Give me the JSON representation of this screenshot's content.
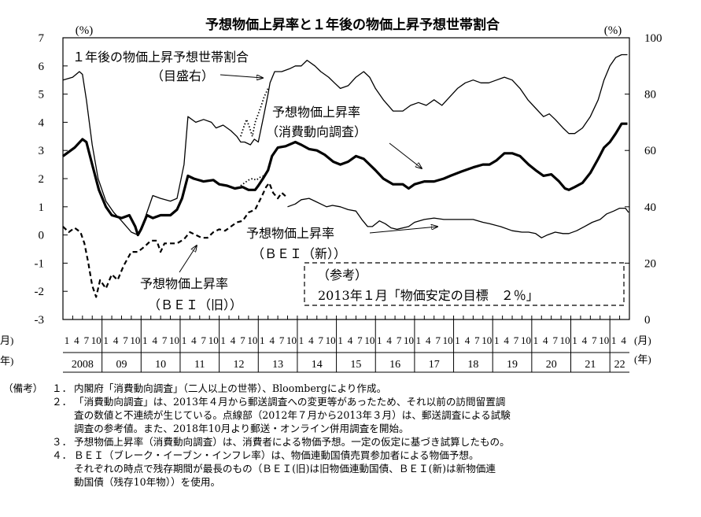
{
  "chart_data": {
    "type": "line",
    "title": "予想物価上昇率と１年後の物価上昇予想世帯割合",
    "left_axis": {
      "unit": "(%)",
      "range": [
        -3,
        7
      ],
      "ticks": [
        7,
        6,
        5,
        4,
        3,
        2,
        1,
        0,
        -1,
        -2,
        -3
      ]
    },
    "right_axis": {
      "unit": "(%)",
      "range": [
        0,
        100
      ],
      "ticks": [
        100,
        80,
        60,
        40,
        20,
        0
      ]
    },
    "x_axis": {
      "month_unit": "(月)",
      "year_unit": "(年)",
      "left_edge_month_unit": "月)",
      "left_edge_year_unit": "年)",
      "month_ticks": [
        "1",
        "4",
        "7",
        "10"
      ],
      "years": [
        "2008",
        "09",
        "10",
        "11",
        "12",
        "13",
        "14",
        "15",
        "16",
        "17",
        "18",
        "19",
        "20",
        "21",
        "22"
      ]
    },
    "series": [
      {
        "name": "１年後の物価上昇予想世帯割合",
        "axis": "right",
        "style": "thin",
        "points": [
          [
            2008.0,
            85
          ],
          [
            2008.25,
            86
          ],
          [
            2008.42,
            88
          ],
          [
            2008.5,
            87
          ],
          [
            2008.6,
            78
          ],
          [
            2008.75,
            62
          ],
          [
            2008.9,
            50
          ],
          [
            2009.1,
            42
          ],
          [
            2009.3,
            38
          ],
          [
            2009.5,
            35
          ],
          [
            2009.75,
            31
          ],
          [
            2009.92,
            30
          ],
          [
            2010.1,
            36
          ],
          [
            2010.3,
            44
          ],
          [
            2010.5,
            43
          ],
          [
            2010.75,
            42
          ],
          [
            2010.92,
            43
          ],
          [
            2011.1,
            55
          ],
          [
            2011.2,
            72
          ],
          [
            2011.4,
            70
          ],
          [
            2011.6,
            71
          ],
          [
            2011.8,
            70
          ],
          [
            2011.92,
            68
          ],
          [
            2012.1,
            69
          ],
          [
            2012.3,
            67
          ],
          [
            2012.45,
            65
          ],
          [
            2012.55,
            63
          ],
          [
            2012.65,
            63
          ],
          [
            2012.8,
            62
          ],
          [
            2012.9,
            64
          ],
          [
            2013.0,
            63
          ],
          [
            2013.15,
            73
          ],
          [
            2013.25,
            80
          ],
          [
            2013.3,
            84
          ],
          [
            2013.42,
            88
          ],
          [
            2013.6,
            88
          ],
          [
            2013.8,
            89
          ],
          [
            2013.95,
            90
          ],
          [
            2014.1,
            90
          ],
          [
            2014.25,
            92
          ],
          [
            2014.45,
            90
          ],
          [
            2014.6,
            88
          ],
          [
            2014.8,
            86
          ],
          [
            2014.95,
            84
          ],
          [
            2015.1,
            82
          ],
          [
            2015.3,
            83
          ],
          [
            2015.5,
            86
          ],
          [
            2015.7,
            88
          ],
          [
            2015.85,
            86
          ],
          [
            2016.0,
            82
          ],
          [
            2016.2,
            78
          ],
          [
            2016.45,
            74
          ],
          [
            2016.7,
            74
          ],
          [
            2016.9,
            76
          ],
          [
            2017.1,
            77
          ],
          [
            2017.3,
            76
          ],
          [
            2017.5,
            78
          ],
          [
            2017.7,
            76
          ],
          [
            2017.9,
            79
          ],
          [
            2018.1,
            82
          ],
          [
            2018.3,
            84
          ],
          [
            2018.5,
            85
          ],
          [
            2018.7,
            84
          ],
          [
            2018.9,
            84
          ],
          [
            2019.1,
            85
          ],
          [
            2019.3,
            86
          ],
          [
            2019.5,
            85
          ],
          [
            2019.7,
            82
          ],
          [
            2019.9,
            78
          ],
          [
            2020.1,
            75
          ],
          [
            2020.3,
            72
          ],
          [
            2020.45,
            73
          ],
          [
            2020.6,
            71
          ],
          [
            2020.8,
            68
          ],
          [
            2020.95,
            66
          ],
          [
            2021.1,
            66
          ],
          [
            2021.3,
            68
          ],
          [
            2021.5,
            72
          ],
          [
            2021.7,
            78
          ],
          [
            2021.85,
            85
          ],
          [
            2022.0,
            90
          ],
          [
            2022.15,
            93
          ],
          [
            2022.3,
            94
          ],
          [
            2022.45,
            94
          ]
        ]
      },
      {
        "name": "予想物価上昇率（消費動向調査）",
        "axis": "left",
        "style": "thick",
        "points": [
          [
            2008.0,
            2.8
          ],
          [
            2008.3,
            3.1
          ],
          [
            2008.5,
            3.4
          ],
          [
            2008.6,
            3.3
          ],
          [
            2008.75,
            2.5
          ],
          [
            2008.92,
            1.6
          ],
          [
            2009.1,
            1.0
          ],
          [
            2009.25,
            0.7
          ],
          [
            2009.5,
            0.6
          ],
          [
            2009.7,
            0.7
          ],
          [
            2009.85,
            0.3
          ],
          [
            2009.92,
            0.0
          ],
          [
            2010.0,
            0.2
          ],
          [
            2010.15,
            0.7
          ],
          [
            2010.3,
            0.6
          ],
          [
            2010.5,
            0.7
          ],
          [
            2010.75,
            0.7
          ],
          [
            2010.92,
            0.9
          ],
          [
            2011.05,
            1.3
          ],
          [
            2011.2,
            2.1
          ],
          [
            2011.35,
            2.0
          ],
          [
            2011.6,
            1.9
          ],
          [
            2011.85,
            1.95
          ],
          [
            2012.0,
            1.8
          ],
          [
            2012.2,
            1.75
          ],
          [
            2012.4,
            1.65
          ],
          [
            2012.6,
            1.7
          ],
          [
            2012.75,
            1.6
          ],
          [
            2012.92,
            1.6
          ],
          [
            2013.0,
            1.75
          ],
          [
            2013.12,
            2.0
          ],
          [
            2013.25,
            2.3
          ],
          [
            2013.35,
            2.8
          ],
          [
            2013.5,
            3.1
          ],
          [
            2013.7,
            3.15
          ],
          [
            2013.95,
            3.3
          ],
          [
            2014.1,
            3.2
          ],
          [
            2014.3,
            3.05
          ],
          [
            2014.5,
            3.0
          ],
          [
            2014.7,
            2.85
          ],
          [
            2014.92,
            2.6
          ],
          [
            2015.1,
            2.5
          ],
          [
            2015.3,
            2.6
          ],
          [
            2015.5,
            2.8
          ],
          [
            2015.7,
            2.7
          ],
          [
            2015.85,
            2.5
          ],
          [
            2016.0,
            2.3
          ],
          [
            2016.2,
            2.0
          ],
          [
            2016.45,
            1.8
          ],
          [
            2016.7,
            1.8
          ],
          [
            2016.85,
            1.65
          ],
          [
            2017.0,
            1.8
          ],
          [
            2017.25,
            1.9
          ],
          [
            2017.5,
            1.9
          ],
          [
            2017.75,
            2.0
          ],
          [
            2017.92,
            2.1
          ],
          [
            2018.2,
            2.25
          ],
          [
            2018.5,
            2.4
          ],
          [
            2018.75,
            2.5
          ],
          [
            2018.92,
            2.5
          ],
          [
            2019.1,
            2.65
          ],
          [
            2019.3,
            2.9
          ],
          [
            2019.5,
            2.9
          ],
          [
            2019.7,
            2.8
          ],
          [
            2019.92,
            2.5
          ],
          [
            2020.1,
            2.3
          ],
          [
            2020.3,
            2.1
          ],
          [
            2020.5,
            2.15
          ],
          [
            2020.7,
            1.9
          ],
          [
            2020.85,
            1.65
          ],
          [
            2020.95,
            1.6
          ],
          [
            2021.1,
            1.7
          ],
          [
            2021.3,
            1.85
          ],
          [
            2021.5,
            2.2
          ],
          [
            2021.7,
            2.7
          ],
          [
            2021.85,
            3.1
          ],
          [
            2022.0,
            3.3
          ],
          [
            2022.15,
            3.6
          ],
          [
            2022.3,
            3.95
          ],
          [
            2022.45,
            3.95
          ]
        ]
      },
      {
        "name": "予想物価上昇率（ＢＥＩ（旧））",
        "axis": "left",
        "style": "dashed",
        "points": [
          [
            2008.0,
            0.3
          ],
          [
            2008.15,
            0.1
          ],
          [
            2008.3,
            0.25
          ],
          [
            2008.45,
            0.1
          ],
          [
            2008.55,
            -0.3
          ],
          [
            2008.65,
            -1.0
          ],
          [
            2008.75,
            -1.8
          ],
          [
            2008.85,
            -2.2
          ],
          [
            2008.95,
            -1.6
          ],
          [
            2009.1,
            -1.9
          ],
          [
            2009.25,
            -1.4
          ],
          [
            2009.4,
            -1.6
          ],
          [
            2009.55,
            -1.1
          ],
          [
            2009.75,
            -0.6
          ],
          [
            2009.92,
            -0.6
          ],
          [
            2010.1,
            -0.4
          ],
          [
            2010.25,
            -0.2
          ],
          [
            2010.4,
            -0.2
          ],
          [
            2010.5,
            -0.6
          ],
          [
            2010.6,
            -0.3
          ],
          [
            2010.75,
            -0.3
          ],
          [
            2010.92,
            -0.3
          ],
          [
            2011.1,
            -0.15
          ],
          [
            2011.25,
            0.1
          ],
          [
            2011.4,
            0.0
          ],
          [
            2011.55,
            -0.1
          ],
          [
            2011.7,
            -0.1
          ],
          [
            2011.85,
            0.1
          ],
          [
            2012.0,
            0.2
          ],
          [
            2012.15,
            0.15
          ],
          [
            2012.3,
            0.3
          ],
          [
            2012.45,
            0.45
          ],
          [
            2012.6,
            0.5
          ],
          [
            2012.75,
            0.8
          ],
          [
            2012.92,
            0.9
          ],
          [
            2013.1,
            1.4
          ],
          [
            2013.2,
            1.7
          ],
          [
            2013.28,
            1.85
          ],
          [
            2013.38,
            1.5
          ],
          [
            2013.5,
            1.3
          ],
          [
            2013.6,
            1.5
          ],
          [
            2013.72,
            1.35
          ]
        ]
      },
      {
        "name": "予想物価上昇率（ＢＥＩ（新））",
        "axis": "left",
        "style": "thin",
        "points": [
          [
            2013.75,
            1.0
          ],
          [
            2013.95,
            1.1
          ],
          [
            2014.1,
            1.25
          ],
          [
            2014.3,
            1.3
          ],
          [
            2014.45,
            1.2
          ],
          [
            2014.6,
            1.1
          ],
          [
            2014.75,
            1.0
          ],
          [
            2014.9,
            1.05
          ],
          [
            2015.1,
            1.0
          ],
          [
            2015.3,
            0.9
          ],
          [
            2015.5,
            0.85
          ],
          [
            2015.65,
            0.55
          ],
          [
            2015.8,
            0.3
          ],
          [
            2015.92,
            0.3
          ],
          [
            2016.1,
            0.5
          ],
          [
            2016.25,
            0.4
          ],
          [
            2016.4,
            0.25
          ],
          [
            2016.55,
            0.2
          ],
          [
            2016.7,
            0.25
          ],
          [
            2016.85,
            0.3
          ],
          [
            2017.0,
            0.45
          ],
          [
            2017.25,
            0.55
          ],
          [
            2017.5,
            0.6
          ],
          [
            2017.75,
            0.55
          ],
          [
            2017.92,
            0.55
          ],
          [
            2018.2,
            0.55
          ],
          [
            2018.5,
            0.55
          ],
          [
            2018.75,
            0.45
          ],
          [
            2018.92,
            0.4
          ],
          [
            2019.2,
            0.3
          ],
          [
            2019.5,
            0.15
          ],
          [
            2019.75,
            0.1
          ],
          [
            2019.92,
            0.1
          ],
          [
            2020.1,
            0.05
          ],
          [
            2020.25,
            -0.1
          ],
          [
            2020.4,
            0.0
          ],
          [
            2020.6,
            0.1
          ],
          [
            2020.8,
            0.05
          ],
          [
            2020.95,
            0.05
          ],
          [
            2021.15,
            0.15
          ],
          [
            2021.35,
            0.3
          ],
          [
            2021.55,
            0.45
          ],
          [
            2021.75,
            0.55
          ],
          [
            2021.92,
            0.75
          ],
          [
            2022.1,
            0.85
          ],
          [
            2022.25,
            0.95
          ],
          [
            2022.4,
            0.95
          ],
          [
            2022.48,
            0.8
          ]
        ]
      },
      {
        "name": "１年後の物価上昇予想世帯割合（試験調査・点線部）",
        "axis": "right",
        "style": "dotted",
        "points": [
          [
            2012.55,
            65
          ],
          [
            2012.62,
            68
          ],
          [
            2012.7,
            71
          ],
          [
            2012.78,
            68
          ],
          [
            2012.85,
            65
          ],
          [
            2012.92,
            70
          ],
          [
            2013.0,
            73
          ],
          [
            2013.08,
            76
          ],
          [
            2013.15,
            79
          ],
          [
            2013.25,
            82
          ]
        ]
      },
      {
        "name": "予想物価上昇率（消費動向調査・点線部）",
        "axis": "left",
        "style": "dotted",
        "points": [
          [
            2012.55,
            1.75
          ],
          [
            2012.65,
            1.85
          ],
          [
            2012.75,
            1.95
          ],
          [
            2012.85,
            2.0
          ],
          [
            2012.95,
            1.95
          ],
          [
            2013.05,
            2.05
          ],
          [
            2013.15,
            2.1
          ],
          [
            2013.25,
            2.3
          ]
        ]
      }
    ],
    "annotations": {
      "household_label_1": "１年後の物価上昇予想世帯割合",
      "household_label_2": "（目盛右）",
      "survey_label_1": "予想物価上昇率",
      "survey_label_2": "（消費動向調査）",
      "bei_new_label_1": "予想物価上昇率",
      "bei_new_label_2": "（ＢＥＩ（新））",
      "bei_old_label_1": "予想物価上昇率",
      "bei_old_label_2": "（ＢＥＩ（旧））",
      "reference_label_1": "（参考）",
      "reference_label_2": "2013年１月「物価安定の目標　２％」"
    },
    "grid": false,
    "legend": "none"
  },
  "notes": {
    "heading": "（備考）",
    "items": [
      {
        "num": "１．",
        "lines": [
          "内閣府「消費動向調査」（二人以上の世帯）、Bloombergにより作成。"
        ]
      },
      {
        "num": "２．",
        "lines": [
          "「消費動向調査」は、2013年４月から郵送調査への変更等があったため、それ以前の訪問留置調",
          "査の数値と不連続が生じている。点線部（2012年７月から2013年３月）は、郵送調査による試験",
          "調査の参考値。また、2018年10月より郵送・オンライン併用調査を開始。"
        ]
      },
      {
        "num": "３．",
        "lines": [
          "予想物価上昇率（消費動向調査）は、消費者による物価予想。一定の仮定に基づき試算したもの。"
        ]
      },
      {
        "num": "４．",
        "lines": [
          "ＢＥＩ（ブレーク・イーブン・インフレ率）は、物価連動国債売買参加者による物価予想。",
          "それぞれの時点で残存期間が最長のもの（ＢＥＩ(旧)は旧物価連動国債、ＢＥＩ(新)は新物価連",
          "動国債（残存10年物））を使用。"
        ]
      }
    ]
  }
}
